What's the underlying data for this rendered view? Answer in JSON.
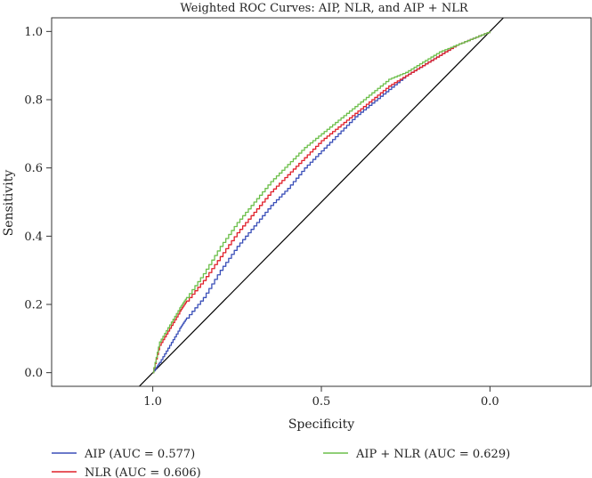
{
  "chart_data": {
    "type": "line",
    "title": "Weighted ROC Curves: AIP, NLR, and AIP + NLR",
    "xlabel": "Specificity",
    "ylabel": "Sensitivity",
    "xlim": [
      1.3,
      -0.3
    ],
    "ylim": [
      -0.04,
      1.04
    ],
    "x_reversed": true,
    "x_ticks": [
      1.0,
      0.5,
      0.0
    ],
    "x_tick_labels": [
      "1.0",
      "0.5",
      "0.0"
    ],
    "y_ticks": [
      0.0,
      0.2,
      0.4,
      0.6,
      0.8,
      1.0
    ],
    "y_tick_labels": [
      "0.0",
      "0.2",
      "0.4",
      "0.6",
      "0.8",
      "1.0"
    ],
    "reference_line": {
      "name": "chance-diagonal",
      "color": "#000000"
    },
    "legend_position": "bottom",
    "series": [
      {
        "name": "AIP",
        "legend_label": "AIP (AUC = 0.577)",
        "color": "#3a4fb8",
        "x": [
          1.0,
          0.98,
          0.95,
          0.92,
          0.9,
          0.85,
          0.8,
          0.75,
          0.7,
          0.65,
          0.6,
          0.55,
          0.5,
          0.45,
          0.4,
          0.35,
          0.3,
          0.25,
          0.2,
          0.15,
          0.1,
          0.05,
          0.0
        ],
        "y": [
          0.0,
          0.03,
          0.08,
          0.13,
          0.16,
          0.22,
          0.3,
          0.37,
          0.43,
          0.49,
          0.54,
          0.6,
          0.65,
          0.7,
          0.75,
          0.79,
          0.83,
          0.87,
          0.9,
          0.93,
          0.96,
          0.98,
          1.0
        ]
      },
      {
        "name": "NLR",
        "legend_label": "NLR (AUC = 0.606)",
        "color": "#e0202a",
        "x": [
          1.0,
          0.98,
          0.95,
          0.92,
          0.9,
          0.85,
          0.8,
          0.75,
          0.7,
          0.65,
          0.6,
          0.55,
          0.5,
          0.45,
          0.4,
          0.35,
          0.3,
          0.25,
          0.2,
          0.15,
          0.1,
          0.05,
          0.0
        ],
        "y": [
          0.0,
          0.08,
          0.13,
          0.18,
          0.21,
          0.27,
          0.34,
          0.41,
          0.47,
          0.53,
          0.58,
          0.63,
          0.68,
          0.72,
          0.76,
          0.8,
          0.84,
          0.87,
          0.9,
          0.93,
          0.96,
          0.98,
          1.0
        ]
      },
      {
        "name": "AIP + NLR",
        "legend_label": "AIP + NLR (AUC = 0.629)",
        "color": "#6cbf4a",
        "x": [
          1.0,
          0.98,
          0.95,
          0.92,
          0.9,
          0.85,
          0.8,
          0.75,
          0.7,
          0.65,
          0.6,
          0.55,
          0.5,
          0.45,
          0.4,
          0.35,
          0.3,
          0.25,
          0.2,
          0.15,
          0.1,
          0.05,
          0.0
        ],
        "y": [
          0.0,
          0.09,
          0.14,
          0.19,
          0.22,
          0.29,
          0.37,
          0.44,
          0.5,
          0.56,
          0.61,
          0.66,
          0.7,
          0.74,
          0.78,
          0.82,
          0.86,
          0.88,
          0.91,
          0.94,
          0.96,
          0.98,
          1.0
        ]
      }
    ]
  }
}
